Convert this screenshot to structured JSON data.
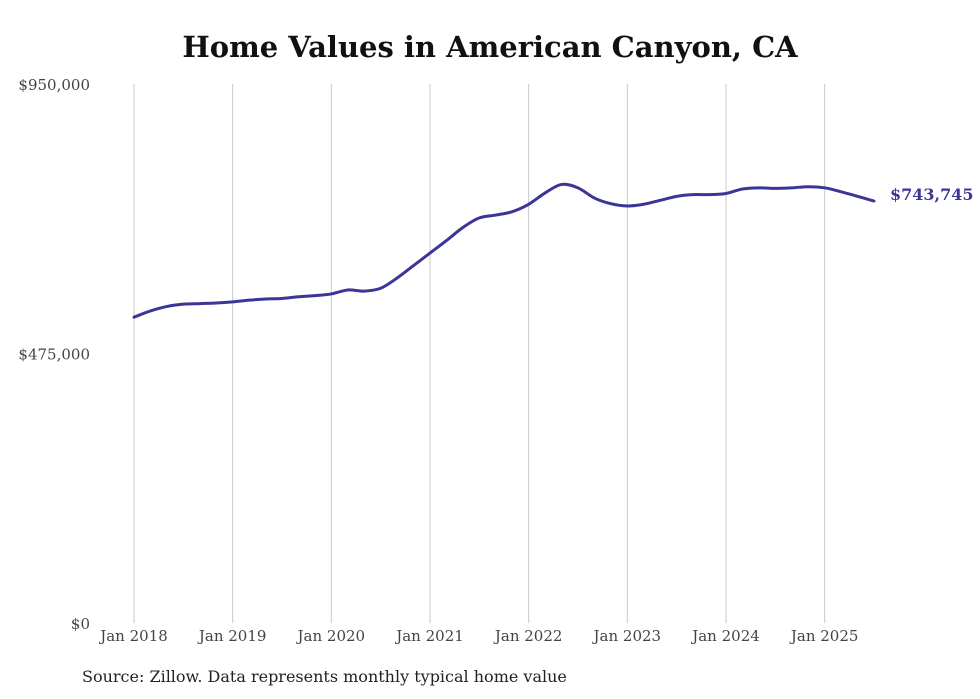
{
  "chart_data": {
    "type": "line",
    "title": "Home Values in American Canyon, CA",
    "xlabel": "",
    "ylabel": "",
    "ylim": [
      0,
      950000
    ],
    "yticks": [
      {
        "value": 0,
        "label": "$0"
      },
      {
        "value": 475000,
        "label": "$475,000"
      },
      {
        "value": 950000,
        "label": "$950,000"
      }
    ],
    "xticks": [
      {
        "value": "2018-01",
        "label": "Jan 2018"
      },
      {
        "value": "2019-01",
        "label": "Jan 2019"
      },
      {
        "value": "2020-01",
        "label": "Jan 2020"
      },
      {
        "value": "2021-01",
        "label": "Jan 2021"
      },
      {
        "value": "2022-01",
        "label": "Jan 2022"
      },
      {
        "value": "2023-01",
        "label": "Jan 2023"
      },
      {
        "value": "2024-01",
        "label": "Jan 2024"
      },
      {
        "value": "2025-01",
        "label": "Jan 2025"
      }
    ],
    "grid": "vertical",
    "line_color": "#3a3597",
    "series": [
      {
        "x": [
          "2018-01",
          "2018-03",
          "2018-05",
          "2018-07",
          "2018-09",
          "2018-11",
          "2019-01",
          "2019-03",
          "2019-05",
          "2019-07",
          "2019-09",
          "2019-11",
          "2020-01",
          "2020-03",
          "2020-05",
          "2020-07",
          "2020-09",
          "2020-11",
          "2021-01",
          "2021-03",
          "2021-05",
          "2021-07",
          "2021-09",
          "2021-11",
          "2022-01",
          "2022-03",
          "2022-05",
          "2022-07",
          "2022-09",
          "2022-11",
          "2023-01",
          "2023-03",
          "2023-05",
          "2023-07",
          "2023-09",
          "2023-11",
          "2024-01",
          "2024-03",
          "2024-05",
          "2024-07",
          "2024-09",
          "2024-11",
          "2025-01",
          "2025-03",
          "2025-05",
          "2025-07"
        ],
        "values": [
          539000,
          550000,
          558000,
          562000,
          563000,
          564000,
          566000,
          569000,
          571000,
          572000,
          575000,
          577000,
          580000,
          587000,
          585000,
          590000,
          608000,
          630000,
          652000,
          674000,
          697000,
          714000,
          719000,
          725000,
          738000,
          758000,
          773000,
          767000,
          749000,
          739000,
          735000,
          738000,
          745000,
          752000,
          755000,
          755000,
          757000,
          765000,
          767000,
          766000,
          767000,
          769000,
          767000,
          760000,
          752000,
          743745
        ]
      }
    ],
    "end_label": "$743,745",
    "source_note": "Source: Zillow. Data represents monthly typical home value"
  }
}
